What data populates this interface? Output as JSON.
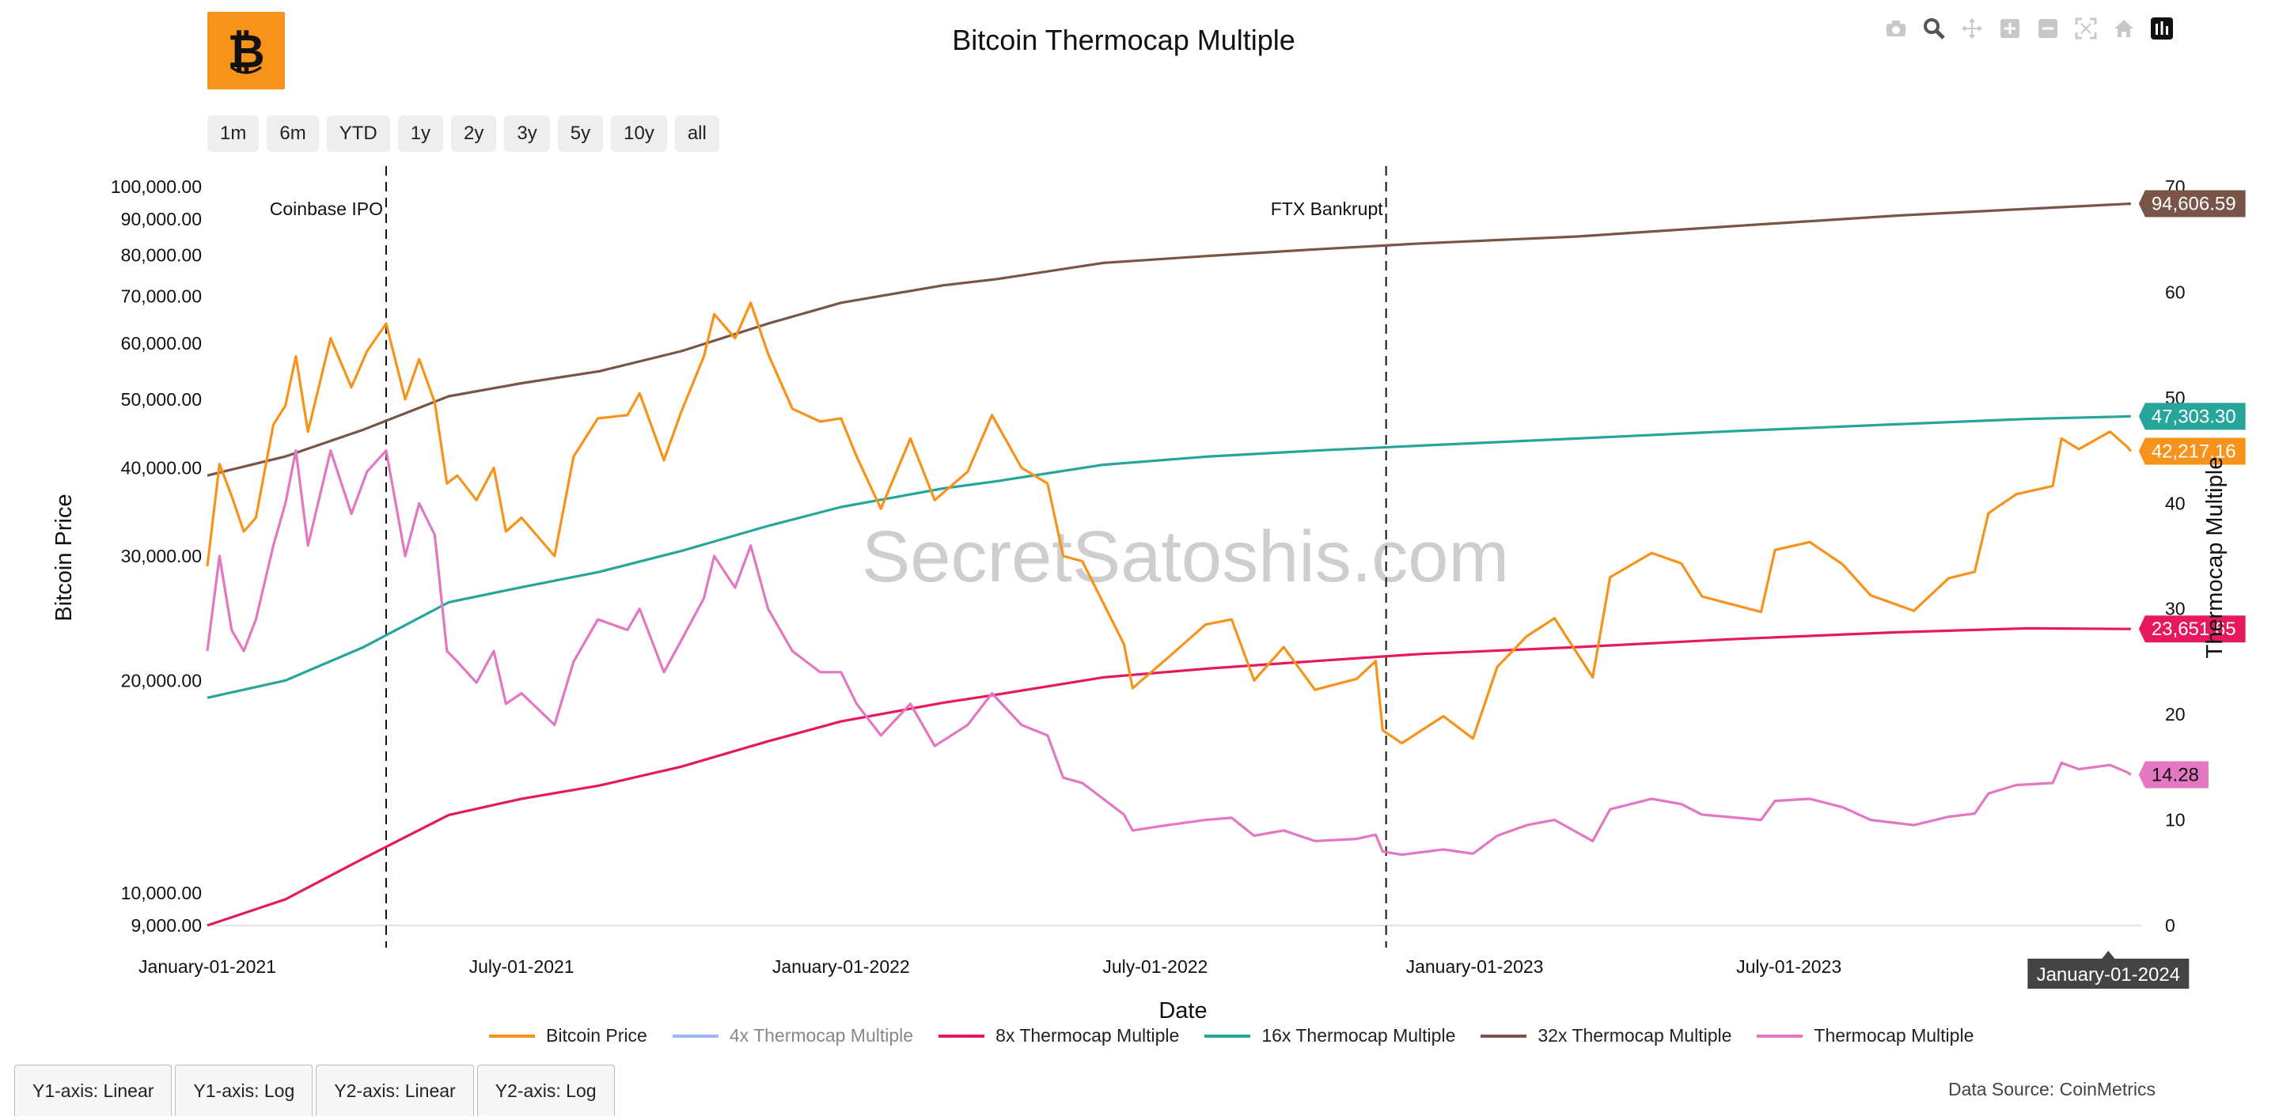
{
  "title": "Bitcoin Thermocap Multiple",
  "logo": {
    "name": "bitcoin-logo",
    "bg": "#f7931a"
  },
  "watermark": "SecretSatoshis.com",
  "modebar": [
    "camera-icon",
    "zoom-icon",
    "pan-icon",
    "zoom-in-icon",
    "zoom-out-icon",
    "autoscale-icon",
    "home-icon",
    "plotly-logo-icon"
  ],
  "range_buttons": [
    "1m",
    "6m",
    "YTD",
    "1y",
    "2y",
    "3y",
    "5y",
    "10y",
    "all"
  ],
  "axis_buttons": [
    "Y1-axis: Linear",
    "Y1-axis: Log",
    "Y2-axis: Linear",
    "Y2-axis: Log"
  ],
  "data_source": "Data Source: CoinMetrics",
  "chart_data": {
    "type": "line",
    "title": "Bitcoin Thermocap Multiple",
    "xlabel": "Date",
    "ylabel": "Bitcoin Price",
    "y2label": "Thermocap Multiple",
    "xlim": [
      "2021-01-01",
      "2024-01-20"
    ],
    "ylim": [
      9000,
      100000
    ],
    "yscale": "log",
    "y2lim": [
      0,
      70
    ],
    "x_ticks": [
      "January-01-2021",
      "July-01-2021",
      "January-01-2022",
      "July-01-2022",
      "January-01-2023",
      "July-01-2023",
      "January-01-2024"
    ],
    "y_ticks": [
      "9,000.00",
      "10,000.00",
      "20,000.00",
      "30,000.00",
      "40,000.00",
      "50,000.00",
      "60,000.00",
      "70,000.00",
      "80,000.00",
      "90,000.00",
      "100,000.00"
    ],
    "y2_ticks": [
      "0",
      "10",
      "20",
      "30",
      "40",
      "50",
      "60",
      "70"
    ],
    "hover_x_label": "January-01-2024",
    "annotations": [
      {
        "date": "2021-04-14",
        "text": "Coinbase IPO"
      },
      {
        "date": "2022-11-11",
        "text": "FTX Bankrupt"
      }
    ],
    "series": [
      {
        "name": "Bitcoin Price",
        "color": "#f7931a",
        "axis": "y1",
        "visible": true,
        "last_label": "42,217.16",
        "points": [
          [
            "2021-01-01",
            29000
          ],
          [
            "2021-01-08",
            40500
          ],
          [
            "2021-01-15",
            36500
          ],
          [
            "2021-01-22",
            32500
          ],
          [
            "2021-01-29",
            34000
          ],
          [
            "2021-02-08",
            46000
          ],
          [
            "2021-02-15",
            49000
          ],
          [
            "2021-02-21",
            57500
          ],
          [
            "2021-02-28",
            45000
          ],
          [
            "2021-03-13",
            61000
          ],
          [
            "2021-03-25",
            52000
          ],
          [
            "2021-04-03",
            58500
          ],
          [
            "2021-04-14",
            64000
          ],
          [
            "2021-04-25",
            50000
          ],
          [
            "2021-05-03",
            57000
          ],
          [
            "2021-05-12",
            49500
          ],
          [
            "2021-05-19",
            38000
          ],
          [
            "2021-05-25",
            39000
          ],
          [
            "2021-06-05",
            36000
          ],
          [
            "2021-06-15",
            40000
          ],
          [
            "2021-06-22",
            32500
          ],
          [
            "2021-07-01",
            34000
          ],
          [
            "2021-07-20",
            30000
          ],
          [
            "2021-07-31",
            41500
          ],
          [
            "2021-08-14",
            47000
          ],
          [
            "2021-08-31",
            47500
          ],
          [
            "2021-09-07",
            51000
          ],
          [
            "2021-09-21",
            41000
          ],
          [
            "2021-10-01",
            48000
          ],
          [
            "2021-10-14",
            57500
          ],
          [
            "2021-10-20",
            66000
          ],
          [
            "2021-11-01",
            61000
          ],
          [
            "2021-11-10",
            68500
          ],
          [
            "2021-11-20",
            58000
          ],
          [
            "2021-12-04",
            48500
          ],
          [
            "2021-12-20",
            46500
          ],
          [
            "2022-01-01",
            47000
          ],
          [
            "2022-01-10",
            41500
          ],
          [
            "2022-01-24",
            35000
          ],
          [
            "2022-02-10",
            44000
          ],
          [
            "2022-02-24",
            36000
          ],
          [
            "2022-03-15",
            39500
          ],
          [
            "2022-03-29",
            47500
          ],
          [
            "2022-04-15",
            40000
          ],
          [
            "2022-04-30",
            38000
          ],
          [
            "2022-05-09",
            30000
          ],
          [
            "2022-05-20",
            29500
          ],
          [
            "2022-06-13",
            22500
          ],
          [
            "2022-06-18",
            19500
          ],
          [
            "2022-07-08",
            21500
          ],
          [
            "2022-07-30",
            24000
          ],
          [
            "2022-08-14",
            24400
          ],
          [
            "2022-08-27",
            20000
          ],
          [
            "2022-09-13",
            22300
          ],
          [
            "2022-10-01",
            19400
          ],
          [
            "2022-10-25",
            20100
          ],
          [
            "2022-11-05",
            21300
          ],
          [
            "2022-11-09",
            17000
          ],
          [
            "2022-11-20",
            16300
          ],
          [
            "2022-12-14",
            17800
          ],
          [
            "2022-12-31",
            16550
          ],
          [
            "2023-01-14",
            20900
          ],
          [
            "2023-01-31",
            23100
          ],
          [
            "2023-02-16",
            24500
          ],
          [
            "2023-03-10",
            20200
          ],
          [
            "2023-03-20",
            28000
          ],
          [
            "2023-04-13",
            30300
          ],
          [
            "2023-04-30",
            29300
          ],
          [
            "2023-05-12",
            26300
          ],
          [
            "2023-06-15",
            25000
          ],
          [
            "2023-06-23",
            30600
          ],
          [
            "2023-07-13",
            31400
          ],
          [
            "2023-08-01",
            29200
          ],
          [
            "2023-08-17",
            26400
          ],
          [
            "2023-09-11",
            25100
          ],
          [
            "2023-10-01",
            27900
          ],
          [
            "2023-10-16",
            28500
          ],
          [
            "2023-10-24",
            34500
          ],
          [
            "2023-11-09",
            36700
          ],
          [
            "2023-11-30",
            37700
          ],
          [
            "2023-12-05",
            44000
          ],
          [
            "2023-12-15",
            42500
          ],
          [
            "2024-01-02",
            45000
          ],
          [
            "2024-01-12",
            42800
          ],
          [
            "2024-01-14",
            42217.16
          ]
        ]
      },
      {
        "name": "4x Thermocap Multiple",
        "color": "#9fb6f4",
        "axis": "y1",
        "visible": false,
        "points": []
      },
      {
        "name": "8x Thermocap Multiple",
        "color": "#e6195c",
        "axis": "y1",
        "visible": true,
        "last_label": "23,651.65",
        "points": [
          [
            "2021-01-01",
            9000
          ],
          [
            "2021-02-15",
            9800
          ],
          [
            "2021-04-01",
            11200
          ],
          [
            "2021-05-20",
            12900
          ],
          [
            "2021-07-01",
            13600
          ],
          [
            "2021-08-15",
            14200
          ],
          [
            "2021-10-01",
            15100
          ],
          [
            "2021-11-20",
            16400
          ],
          [
            "2022-01-01",
            17500
          ],
          [
            "2022-03-01",
            18600
          ],
          [
            "2022-04-01",
            19100
          ],
          [
            "2022-06-01",
            20200
          ],
          [
            "2022-08-01",
            20800
          ],
          [
            "2022-10-01",
            21300
          ],
          [
            "2022-12-01",
            21800
          ],
          [
            "2023-03-01",
            22300
          ],
          [
            "2023-06-01",
            22900
          ],
          [
            "2023-09-01",
            23400
          ],
          [
            "2023-11-15",
            23700
          ],
          [
            "2024-01-14",
            23651.65
          ]
        ]
      },
      {
        "name": "16x Thermocap Multiple",
        "color": "#26a69a",
        "axis": "y1",
        "visible": true,
        "last_label": "47,303.30",
        "points": [
          [
            "2021-01-01",
            18900
          ],
          [
            "2021-02-15",
            20000
          ],
          [
            "2021-04-01",
            22300
          ],
          [
            "2021-05-20",
            25800
          ],
          [
            "2021-07-01",
            27100
          ],
          [
            "2021-08-15",
            28500
          ],
          [
            "2021-10-01",
            30500
          ],
          [
            "2021-11-20",
            33100
          ],
          [
            "2022-01-01",
            35200
          ],
          [
            "2022-03-01",
            37400
          ],
          [
            "2022-04-01",
            38300
          ],
          [
            "2022-06-01",
            40400
          ],
          [
            "2022-08-01",
            41500
          ],
          [
            "2022-10-01",
            42300
          ],
          [
            "2022-12-01",
            43000
          ],
          [
            "2023-03-01",
            44000
          ],
          [
            "2023-06-01",
            45100
          ],
          [
            "2023-09-01",
            46100
          ],
          [
            "2023-11-15",
            46900
          ],
          [
            "2024-01-14",
            47303.3
          ]
        ]
      },
      {
        "name": "32x Thermocap Multiple",
        "color": "#795548",
        "axis": "y1",
        "visible": true,
        "last_label": "94,606.59",
        "points": [
          [
            "2021-01-01",
            39000
          ],
          [
            "2021-02-15",
            41500
          ],
          [
            "2021-04-01",
            45300
          ],
          [
            "2021-05-20",
            50500
          ],
          [
            "2021-07-01",
            52700
          ],
          [
            "2021-08-15",
            54800
          ],
          [
            "2021-10-01",
            58500
          ],
          [
            "2021-11-20",
            64000
          ],
          [
            "2022-01-01",
            68500
          ],
          [
            "2022-03-01",
            72500
          ],
          [
            "2022-04-01",
            74000
          ],
          [
            "2022-06-01",
            78000
          ],
          [
            "2022-08-01",
            79800
          ],
          [
            "2022-10-01",
            81500
          ],
          [
            "2022-12-01",
            83100
          ],
          [
            "2023-03-01",
            85000
          ],
          [
            "2023-06-01",
            88000
          ],
          [
            "2023-09-01",
            91000
          ],
          [
            "2023-11-15",
            93000
          ],
          [
            "2024-01-14",
            94606.59
          ]
        ]
      },
      {
        "name": "Thermocap Multiple",
        "color": "#e377c2",
        "axis": "y2",
        "visible": true,
        "last_label": "14.28",
        "points": [
          [
            "2021-01-01",
            26
          ],
          [
            "2021-01-08",
            35
          ],
          [
            "2021-01-15",
            28
          ],
          [
            "2021-01-22",
            26
          ],
          [
            "2021-01-29",
            29
          ],
          [
            "2021-02-08",
            36
          ],
          [
            "2021-02-15",
            40
          ],
          [
            "2021-02-21",
            45
          ],
          [
            "2021-02-28",
            36
          ],
          [
            "2021-03-13",
            45
          ],
          [
            "2021-03-25",
            39
          ],
          [
            "2021-04-03",
            43
          ],
          [
            "2021-04-14",
            45
          ],
          [
            "2021-04-25",
            35
          ],
          [
            "2021-05-03",
            40
          ],
          [
            "2021-05-12",
            37
          ],
          [
            "2021-05-19",
            26
          ],
          [
            "2021-05-25",
            25
          ],
          [
            "2021-06-05",
            23
          ],
          [
            "2021-06-15",
            26
          ],
          [
            "2021-06-22",
            21
          ],
          [
            "2021-07-01",
            22
          ],
          [
            "2021-07-20",
            19
          ],
          [
            "2021-07-31",
            25
          ],
          [
            "2021-08-14",
            29
          ],
          [
            "2021-08-31",
            28
          ],
          [
            "2021-09-07",
            30
          ],
          [
            "2021-09-21",
            24
          ],
          [
            "2021-10-01",
            27
          ],
          [
            "2021-10-14",
            31
          ],
          [
            "2021-10-20",
            35
          ],
          [
            "2021-11-01",
            32
          ],
          [
            "2021-11-10",
            36
          ],
          [
            "2021-11-20",
            30
          ],
          [
            "2021-12-04",
            26
          ],
          [
            "2021-12-20",
            24
          ],
          [
            "2022-01-01",
            24
          ],
          [
            "2022-01-10",
            21
          ],
          [
            "2022-01-24",
            18
          ],
          [
            "2022-02-10",
            21
          ],
          [
            "2022-02-24",
            17
          ],
          [
            "2022-03-15",
            19
          ],
          [
            "2022-03-29",
            22
          ],
          [
            "2022-04-15",
            19
          ],
          [
            "2022-04-30",
            18
          ],
          [
            "2022-05-09",
            14
          ],
          [
            "2022-05-20",
            13.5
          ],
          [
            "2022-06-13",
            10.5
          ],
          [
            "2022-06-18",
            9
          ],
          [
            "2022-07-08",
            9.5
          ],
          [
            "2022-07-30",
            10
          ],
          [
            "2022-08-14",
            10.2
          ],
          [
            "2022-08-27",
            8.5
          ],
          [
            "2022-09-13",
            9
          ],
          [
            "2022-10-01",
            8
          ],
          [
            "2022-10-25",
            8.2
          ],
          [
            "2022-11-05",
            8.6
          ],
          [
            "2022-11-09",
            7
          ],
          [
            "2022-11-20",
            6.7
          ],
          [
            "2022-12-14",
            7.2
          ],
          [
            "2022-12-31",
            6.8
          ],
          [
            "2023-01-14",
            8.5
          ],
          [
            "2023-01-31",
            9.5
          ],
          [
            "2023-02-16",
            10
          ],
          [
            "2023-03-10",
            8
          ],
          [
            "2023-03-20",
            11
          ],
          [
            "2023-04-13",
            12
          ],
          [
            "2023-04-30",
            11.5
          ],
          [
            "2023-05-12",
            10.5
          ],
          [
            "2023-06-15",
            10
          ],
          [
            "2023-06-23",
            11.8
          ],
          [
            "2023-07-13",
            12
          ],
          [
            "2023-08-01",
            11.2
          ],
          [
            "2023-08-17",
            10
          ],
          [
            "2023-09-11",
            9.5
          ],
          [
            "2023-10-01",
            10.3
          ],
          [
            "2023-10-16",
            10.6
          ],
          [
            "2023-10-24",
            12.5
          ],
          [
            "2023-11-09",
            13.3
          ],
          [
            "2023-11-30",
            13.5
          ],
          [
            "2023-12-05",
            15.4
          ],
          [
            "2023-12-15",
            14.8
          ],
          [
            "2024-01-02",
            15.2
          ],
          [
            "2024-01-12",
            14.5
          ],
          [
            "2024-01-14",
            14.28
          ]
        ]
      }
    ]
  }
}
